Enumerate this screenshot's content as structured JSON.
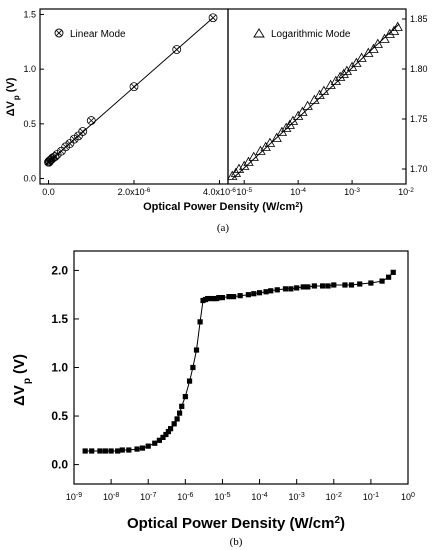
{
  "chart_data": [
    {
      "panel": "(a)",
      "xlabel": "Optical Power Density (W/cm",
      "xlabel_sup": "2",
      "xlabel_end": ")",
      "ylabel_main": "ΔV",
      "ylabel_sub": "p",
      "ylabel_unit": "(V)",
      "subplots": [
        {
          "type": "scatter",
          "legend": "Linear Mode",
          "marker": "circle-x",
          "xscale": "linear",
          "xlim": [
            -2e-07,
            4.2e-06
          ],
          "ylim": [
            -0.05,
            1.55
          ],
          "xticks": [
            {
              "v": 0,
              "label": "0.0"
            },
            {
              "v": 2e-06,
              "label": "2.0x10",
              "sup": "-6"
            },
            {
              "v": 4e-06,
              "label": "4.0x10",
              "sup": "-6"
            }
          ],
          "yticks": [
            {
              "v": 0,
              "label": "0.0"
            },
            {
              "v": 0.5,
              "label": "0.5"
            },
            {
              "v": 1.0,
              "label": "1.0"
            },
            {
              "v": 1.5,
              "label": "1.5"
            }
          ],
          "x": [
            0,
            5e-09,
            1e-08,
            2e-08,
            3e-08,
            5e-08,
            8e-08,
            1e-07,
            1.5e-07,
            2e-07,
            3e-07,
            4e-07,
            5e-07,
            6e-07,
            7e-07,
            8e-07,
            1e-06,
            2e-06,
            3e-06,
            3.85e-06
          ],
          "y": [
            0.15,
            0.15,
            0.15,
            0.16,
            0.16,
            0.17,
            0.18,
            0.19,
            0.2,
            0.22,
            0.25,
            0.29,
            0.32,
            0.36,
            0.39,
            0.43,
            0.53,
            0.84,
            1.18,
            1.47
          ],
          "fit": [
            [
              0,
              0.15
            ],
            [
              3.85e-06,
              1.47
            ]
          ]
        },
        {
          "type": "scatter",
          "legend": "Logarithmic Mode",
          "marker": "triangle-open",
          "xscale": "log",
          "xlim": [
            5e-06,
            0.01
          ],
          "ylim": [
            1.685,
            1.86
          ],
          "xticks": [
            {
              "v": 1e-05,
              "label": "10",
              "sup": "-5"
            },
            {
              "v": 0.0001,
              "label": "10",
              "sup": "-4"
            },
            {
              "v": 0.001,
              "label": "10",
              "sup": "-3"
            },
            {
              "v": 0.01,
              "label": "10",
              "sup": "-2"
            }
          ],
          "yticks": [
            {
              "v": 1.7,
              "label": "1.70"
            },
            {
              "v": 1.75,
              "label": "1.75"
            },
            {
              "v": 1.8,
              "label": "1.80"
            },
            {
              "v": 1.85,
              "label": "1.85"
            }
          ],
          "x": [
            6e-06,
            7e-06,
            8e-06,
            1e-05,
            1.2e-05,
            1.5e-05,
            2e-05,
            2.5e-05,
            3e-05,
            4e-05,
            5e-05,
            6e-05,
            7e-05,
            8e-05,
            0.0001,
            0.00012,
            0.00015,
            0.0002,
            0.00025,
            0.0003,
            0.0004,
            0.0005,
            0.0006,
            0.0007,
            0.0008,
            0.001,
            0.0012,
            0.0015,
            0.002,
            0.0025,
            0.003,
            0.004,
            0.005,
            0.006,
            0.007
          ],
          "y": [
            1.693,
            1.696,
            1.7,
            1.703,
            1.707,
            1.712,
            1.718,
            1.722,
            1.726,
            1.731,
            1.737,
            1.741,
            1.744,
            1.748,
            1.753,
            1.757,
            1.763,
            1.769,
            1.774,
            1.778,
            1.784,
            1.788,
            1.792,
            1.795,
            1.798,
            1.802,
            1.806,
            1.811,
            1.816,
            1.82,
            1.825,
            1.83,
            1.835,
            1.838,
            1.842
          ],
          "fit": [
            [
              6e-06,
              1.69
            ],
            [
              0.0075,
              1.845
            ]
          ]
        }
      ]
    },
    {
      "panel": "(b)",
      "type": "line",
      "marker": "square-filled",
      "xscale": "log",
      "xlim": [
        1e-09,
        1
      ],
      "ylim": [
        -0.2,
        2.2
      ],
      "xlabel": "Optical Power Density (W/cm",
      "xlabel_sup": "2",
      "xlabel_end": ")",
      "ylabel_main": "ΔV",
      "ylabel_sub": "p",
      "ylabel_unit": "(V)",
      "xticks": [
        {
          "v": 1e-09,
          "label": "10",
          "sup": "-9"
        },
        {
          "v": 1e-08,
          "label": "10",
          "sup": "-8"
        },
        {
          "v": 1e-07,
          "label": "10",
          "sup": "-7"
        },
        {
          "v": 1e-06,
          "label": "10",
          "sup": "-6"
        },
        {
          "v": 1e-05,
          "label": "10",
          "sup": "-5"
        },
        {
          "v": 0.0001,
          "label": "10",
          "sup": "-4"
        },
        {
          "v": 0.001,
          "label": "10",
          "sup": "-3"
        },
        {
          "v": 0.01,
          "label": "10",
          "sup": "-2"
        },
        {
          "v": 0.1,
          "label": "10",
          "sup": "-1"
        },
        {
          "v": 1,
          "label": "10",
          "sup": "0"
        }
      ],
      "yticks": [
        {
          "v": 0,
          "label": "0.0"
        },
        {
          "v": 0.5,
          "label": "0.5"
        },
        {
          "v": 1.0,
          "label": "1.0"
        },
        {
          "v": 1.5,
          "label": "1.5"
        },
        {
          "v": 2.0,
          "label": "2.0"
        }
      ],
      "x": [
        2e-09,
        3e-09,
        5e-09,
        7e-09,
        1e-08,
        1.5e-08,
        2e-08,
        3e-08,
        5e-08,
        7e-08,
        1e-07,
        1.5e-07,
        2e-07,
        2.5e-07,
        3e-07,
        3.5e-07,
        4e-07,
        5e-07,
        6e-07,
        7e-07,
        8e-07,
        1e-06,
        1.3e-06,
        1.6e-06,
        2e-06,
        2.5e-06,
        3e-06,
        3.5e-06,
        4e-06,
        5e-06,
        6e-06,
        7e-06,
        8e-06,
        1e-05,
        1.5e-05,
        2e-05,
        3e-05,
        5e-05,
        7e-05,
        0.0001,
        0.00015,
        0.0002,
        0.0003,
        0.0005,
        0.0007,
        0.001,
        0.0015,
        0.002,
        0.003,
        0.005,
        0.007,
        0.01,
        0.02,
        0.03,
        0.05,
        0.1,
        0.2,
        0.3,
        0.4
      ],
      "y": [
        0.14,
        0.14,
        0.14,
        0.14,
        0.14,
        0.14,
        0.15,
        0.15,
        0.16,
        0.17,
        0.19,
        0.22,
        0.25,
        0.28,
        0.31,
        0.34,
        0.37,
        0.42,
        0.47,
        0.53,
        0.6,
        0.7,
        0.86,
        1.0,
        1.18,
        1.47,
        1.69,
        1.7,
        1.71,
        1.71,
        1.71,
        1.71,
        1.72,
        1.72,
        1.73,
        1.73,
        1.74,
        1.75,
        1.76,
        1.77,
        1.78,
        1.79,
        1.8,
        1.81,
        1.81,
        1.82,
        1.83,
        1.83,
        1.84,
        1.84,
        1.84,
        1.85,
        1.85,
        1.85,
        1.86,
        1.87,
        1.89,
        1.93,
        1.98
      ]
    }
  ]
}
